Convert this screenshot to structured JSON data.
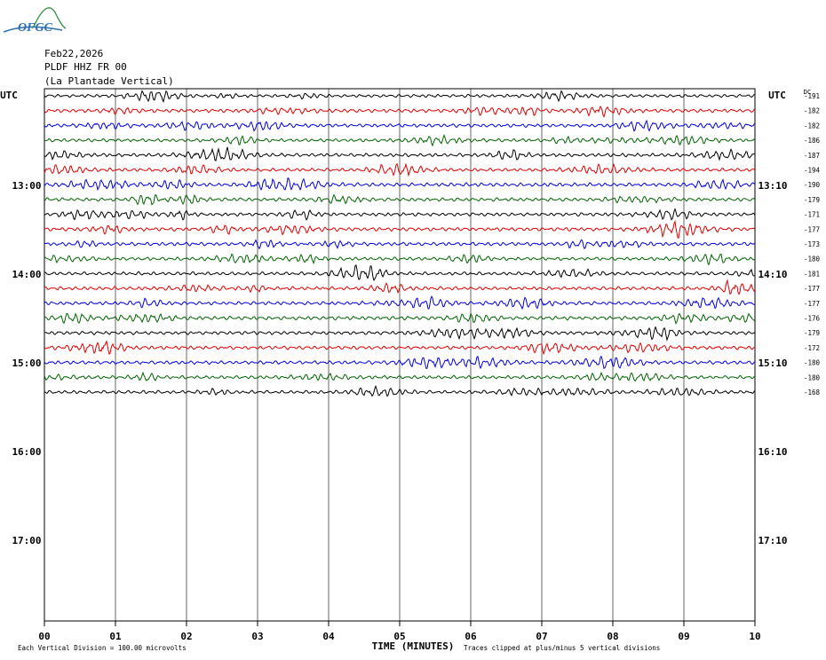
{
  "logo": {
    "text": "OFGC",
    "color": "#2c6fb0",
    "swoosh_color": "#2e8b3d"
  },
  "header": {
    "date": "Feb22,2026",
    "station": "PLDF HHZ FR 00",
    "location": "(La Plantade Vertical)"
  },
  "chart_data": {
    "type": "line",
    "title": "",
    "left_axis_label": "UTC",
    "right_axis_label": "UTC",
    "right_column_label": "DC",
    "left_hour_labels": [
      "13:00",
      "14:00",
      "15:00",
      "16:00",
      "17:00"
    ],
    "right_hour_labels": [
      "13:10",
      "14:10",
      "15:10",
      "16:10",
      "17:10"
    ],
    "x_ticks": [
      "00",
      "01",
      "02",
      "03",
      "04",
      "05",
      "06",
      "07",
      "08",
      "09",
      "10"
    ],
    "xlabel": "TIME (MINUTES)",
    "xlim": [
      0,
      10
    ],
    "trace_colors": [
      "#000000",
      "#e00000",
      "#0000e0",
      "#006400"
    ],
    "dc_offsets": [
      "-191",
      "-182",
      "-182",
      "-186",
      "-187",
      "-194",
      "-190",
      "-179",
      "-171",
      "-177",
      "-173",
      "-180",
      "-181",
      "-177",
      "-177",
      "-176",
      "-179",
      "-172",
      "-180",
      "-180",
      "-168"
    ],
    "trace_amplitude_divisions": [
      0.35,
      0.4,
      0.4,
      0.38,
      0.4,
      0.38,
      0.42,
      0.4,
      0.38,
      0.42,
      0.4,
      0.38,
      0.38,
      0.4,
      0.4,
      0.42,
      0.4,
      0.4,
      0.4,
      0.38,
      0.38
    ],
    "grid": true,
    "footer_left": "Each Vertical Division =  100.00 microvolts",
    "footer_right": "Traces clipped at plus/minus 5 vertical divisions"
  }
}
